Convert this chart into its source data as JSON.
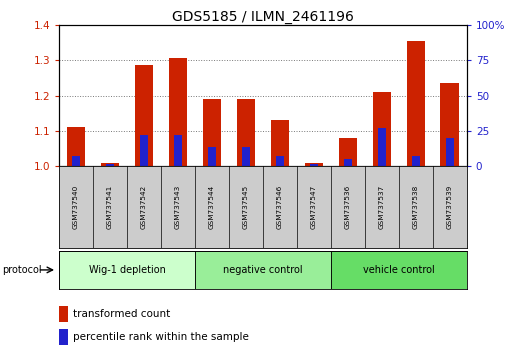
{
  "title": "GDS5185 / ILMN_2461196",
  "samples": [
    "GSM737540",
    "GSM737541",
    "GSM737542",
    "GSM737543",
    "GSM737544",
    "GSM737545",
    "GSM737546",
    "GSM737547",
    "GSM737536",
    "GSM737537",
    "GSM737538",
    "GSM737539"
  ],
  "transformed_count": [
    1.11,
    1.01,
    1.285,
    1.305,
    1.19,
    1.19,
    1.13,
    1.01,
    1.08,
    1.21,
    1.355,
    1.235
  ],
  "percentile_rank": [
    7,
    2,
    22,
    22,
    14,
    14,
    7,
    2,
    5,
    27,
    7,
    20
  ],
  "groups": [
    {
      "label": "Wig-1 depletion",
      "start": 0,
      "end": 4,
      "color": "#ccffcc"
    },
    {
      "label": "negative control",
      "start": 4,
      "end": 8,
      "color": "#99ee99"
    },
    {
      "label": "vehicle control",
      "start": 8,
      "end": 12,
      "color": "#66dd66"
    }
  ],
  "ylim_left": [
    1.0,
    1.4
  ],
  "ylim_right": [
    0,
    100
  ],
  "yticks_left": [
    1.0,
    1.1,
    1.2,
    1.3,
    1.4
  ],
  "yticks_right": [
    0,
    25,
    50,
    75,
    100
  ],
  "ytick_labels_right": [
    "0",
    "25",
    "50",
    "75",
    "100%"
  ],
  "bar_color_red": "#cc2200",
  "bar_color_blue": "#2222cc",
  "grid_color": "#777777",
  "title_fontsize": 10,
  "legend_red_label": "transformed count",
  "legend_blue_label": "percentile rank within the sample",
  "protocol_label": "protocol",
  "background_plot": "#ffffff",
  "background_xlabel": "#cccccc",
  "bar_width": 0.55
}
